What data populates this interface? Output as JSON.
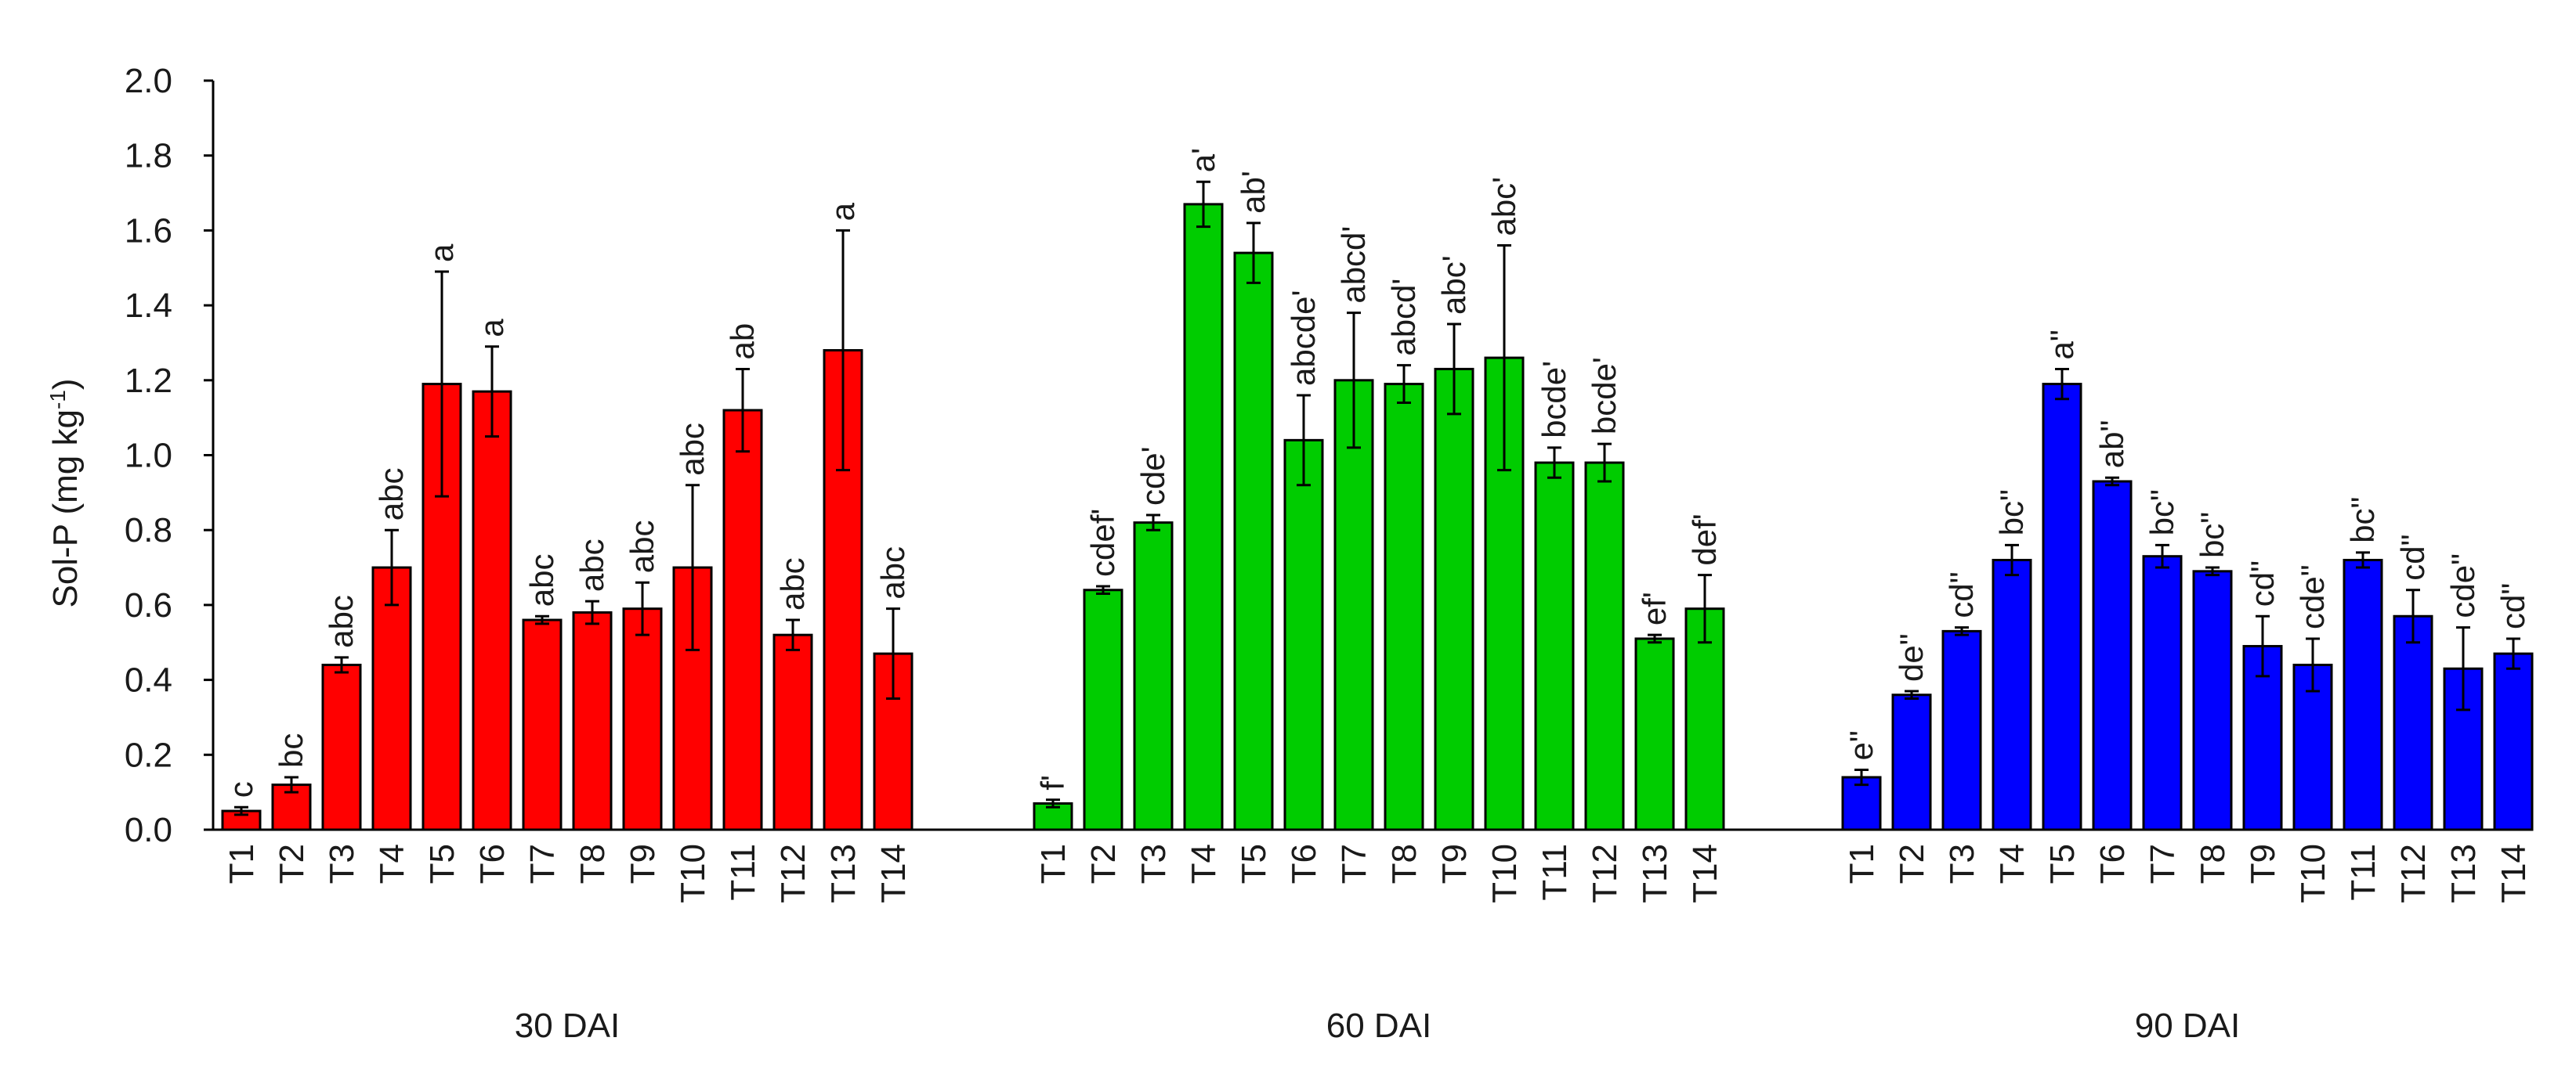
{
  "chart_data": {
    "type": "bar",
    "ylabel": {
      "main": "Sol-P (mg kg",
      "sup": "-1",
      "end": ")"
    },
    "ylim": [
      0,
      2.0
    ],
    "yticks": [
      "0.0",
      "0.2",
      "0.4",
      "0.6",
      "0.8",
      "1.0",
      "1.2",
      "1.4",
      "1.6",
      "1.8",
      "2.0"
    ],
    "grid": false,
    "error_bars": true,
    "groups": [
      {
        "name": "30 DAI",
        "color": "#ff0000",
        "categories": [
          "T1",
          "T2",
          "T3",
          "T4",
          "T5",
          "T6",
          "T7",
          "T8",
          "T9",
          "T10",
          "T11",
          "T12",
          "T13",
          "T14"
        ],
        "values": [
          0.05,
          0.12,
          0.44,
          0.7,
          1.19,
          1.17,
          0.56,
          0.58,
          0.59,
          0.7,
          1.12,
          0.52,
          1.28,
          0.47
        ],
        "errors": [
          0.01,
          0.02,
          0.02,
          0.1,
          0.3,
          0.12,
          0.01,
          0.03,
          0.07,
          0.22,
          0.11,
          0.04,
          0.32,
          0.12
        ],
        "labels": [
          "c",
          "bc",
          "abc",
          "abc",
          "a",
          "a",
          "abc",
          "abc",
          "abc",
          "abc",
          "ab",
          "abc",
          "a",
          "abc"
        ]
      },
      {
        "name": "60 DAI",
        "color": "#00cc00",
        "categories": [
          "T1",
          "T2",
          "T3",
          "T4",
          "T5",
          "T6",
          "T7",
          "T8",
          "T9",
          "T10",
          "T11",
          "T12",
          "T13",
          "T14"
        ],
        "values": [
          0.07,
          0.64,
          0.82,
          1.67,
          1.54,
          1.04,
          1.2,
          1.19,
          1.23,
          1.26,
          0.98,
          0.98,
          0.51,
          0.59
        ],
        "errors": [
          0.01,
          0.01,
          0.02,
          0.06,
          0.08,
          0.12,
          0.18,
          0.05,
          0.12,
          0.3,
          0.04,
          0.05,
          0.01,
          0.09
        ],
        "labels": [
          "f'",
          "cdef'",
          "cde'",
          "a'",
          "ab'",
          "abcde'",
          "abcd'",
          "abcd'",
          "abc'",
          "abc'",
          "bcde'",
          "bcde'",
          "ef'",
          "def'"
        ]
      },
      {
        "name": "90 DAI",
        "color": "#0000ff",
        "categories": [
          "T1",
          "T2",
          "T3",
          "T4",
          "T5",
          "T6",
          "T7",
          "T8",
          "T9",
          "T10",
          "T11",
          "T12",
          "T13",
          "T14"
        ],
        "values": [
          0.14,
          0.36,
          0.53,
          0.72,
          1.19,
          0.93,
          0.73,
          0.69,
          0.49,
          0.44,
          0.72,
          0.57,
          0.43,
          0.47
        ],
        "errors": [
          0.02,
          0.01,
          0.01,
          0.04,
          0.04,
          0.01,
          0.03,
          0.01,
          0.08,
          0.07,
          0.02,
          0.07,
          0.11,
          0.04
        ],
        "labels": [
          "e\"",
          "de\"",
          "cd\"",
          "bc\"",
          "a\"",
          "ab\"",
          "bc\"",
          "bc\"",
          "cd\"",
          "cde\"",
          "bc\"",
          "cd\"",
          "cde\"",
          "cd\""
        ]
      }
    ]
  }
}
